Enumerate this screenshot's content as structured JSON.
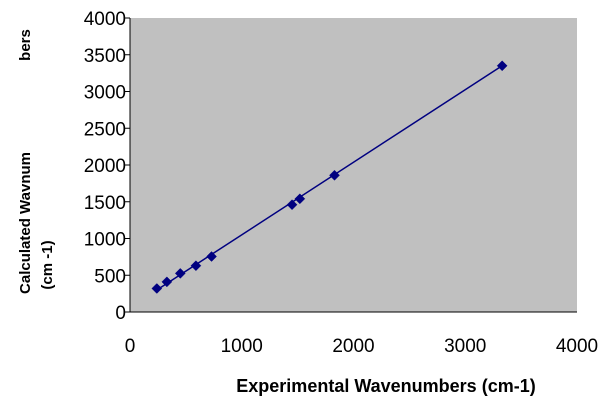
{
  "chart_data": {
    "type": "scatter",
    "title": "",
    "xlabel": "Experimental Wavenumbers (cm-1)",
    "ylabel_lines": [
      "Calculated Wavnum",
      "bers",
      "(cm -1)"
    ],
    "xlim": [
      0,
      4000
    ],
    "ylim": [
      0,
      4000
    ],
    "x_ticks": [
      0,
      1000,
      2000,
      3000,
      4000
    ],
    "y_ticks": [
      0,
      500,
      1000,
      1500,
      2000,
      2500,
      3000,
      3500,
      4000
    ],
    "x_tick_labels": [
      "0",
      "1000",
      "2000",
      "3000",
      "4000"
    ],
    "y_tick_labels": [
      "0",
      "500",
      "1000",
      "1500",
      "2000",
      "2500",
      "3000",
      "3500",
      "4000"
    ],
    "grid": false,
    "legend": "none",
    "plot_background": "#c0c0c0",
    "series_color": "#000080",
    "series": [
      {
        "points": [
          [
            240,
            320
          ],
          [
            330,
            410
          ],
          [
            450,
            525
          ],
          [
            590,
            630
          ],
          [
            730,
            755
          ],
          [
            1450,
            1460
          ],
          [
            1520,
            1540
          ],
          [
            1830,
            1860
          ],
          [
            3330,
            3350
          ]
        ]
      }
    ],
    "trendline": {
      "from": [
        240,
        300
      ],
      "to": [
        3330,
        3350
      ]
    }
  }
}
